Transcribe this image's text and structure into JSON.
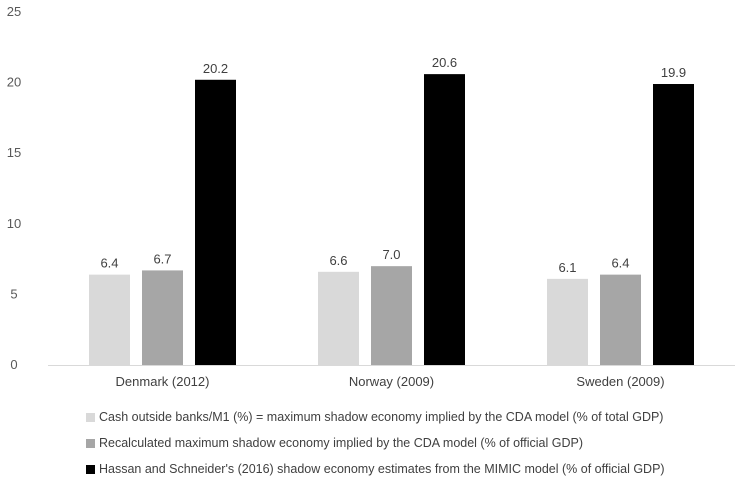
{
  "chart_data": {
    "type": "bar",
    "title": "",
    "xlabel": "",
    "ylabel": "",
    "ylim": [
      0,
      25
    ],
    "yticks": [
      "0",
      "5",
      "10",
      "15",
      "20",
      "25"
    ],
    "grid": false,
    "legend_position": "bottom",
    "categories": [
      "Denmark (2012)",
      "Norway (2009)",
      "Sweden (2009)"
    ],
    "series": [
      {
        "name": "Cash outside banks/M1 (%) = maximum shadow economy implied by the CDA model (% of total GDP)",
        "color": "#d9d9d9",
        "values": [
          6.4,
          6.6,
          6.1
        ],
        "labels": [
          "6.4",
          "6.6",
          "6.1"
        ]
      },
      {
        "name": "Recalculated maximum shadow economy implied by the CDA model (% of official GDP)",
        "color": "#a6a6a6",
        "values": [
          6.7,
          7.0,
          6.4
        ],
        "labels": [
          "6.7",
          "7.0",
          "6.4"
        ]
      },
      {
        "name": "Hassan and Schneider's (2016) shadow economy estimates from the MIMIC model (% of official GDP)",
        "color": "#000000",
        "values": [
          20.2,
          20.6,
          19.9
        ],
        "labels": [
          "20.2",
          "20.6",
          "19.9"
        ]
      }
    ]
  }
}
